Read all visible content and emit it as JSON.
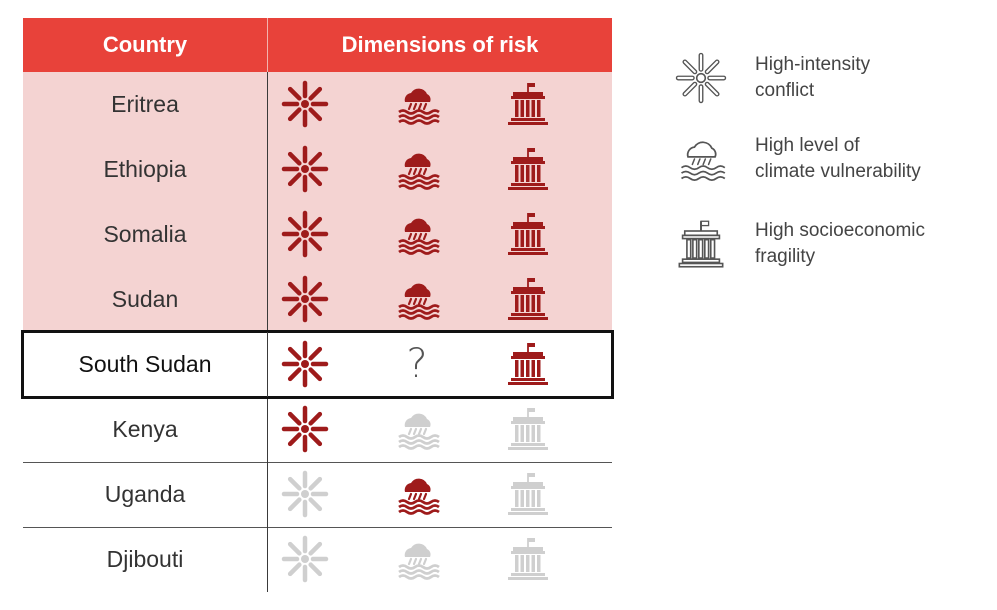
{
  "table": {
    "col_country": "Country",
    "col_dimensions": "Dimensions of risk"
  },
  "legend": {
    "conflict": [
      "High-intensity",
      "conflict"
    ],
    "climate": [
      "High level of",
      "climate vulnerability"
    ],
    "fragility": [
      "High socioeconomic",
      "fragility"
    ]
  },
  "colors": {
    "header_bg": "#e8423a",
    "shaded_row": "#f4d3d2",
    "active_icon": "#9e1b1b",
    "inactive_icon": "#cfcfcf",
    "legend_icon": "#555555"
  },
  "chart_data": {
    "type": "table",
    "columns": [
      "Country",
      "High-intensity conflict",
      "High level of climate vulnerability",
      "High socioeconomic fragility"
    ],
    "rows": [
      {
        "country": "Eritrea",
        "conflict": "yes",
        "climate": "yes",
        "fragility": "yes",
        "shaded": true
      },
      {
        "country": "Ethiopia",
        "conflict": "yes",
        "climate": "yes",
        "fragility": "yes",
        "shaded": true
      },
      {
        "country": "Somalia",
        "conflict": "yes",
        "climate": "yes",
        "fragility": "yes",
        "shaded": true
      },
      {
        "country": "Sudan",
        "conflict": "yes",
        "climate": "yes",
        "fragility": "yes",
        "shaded": true
      },
      {
        "country": "South Sudan",
        "conflict": "yes",
        "climate": "unknown",
        "fragility": "yes",
        "shaded": false,
        "highlighted": true
      },
      {
        "country": "Kenya",
        "conflict": "yes",
        "climate": "no",
        "fragility": "no",
        "shaded": false
      },
      {
        "country": "Uganda",
        "conflict": "no",
        "climate": "yes",
        "fragility": "no",
        "shaded": false
      },
      {
        "country": "Djibouti",
        "conflict": "no",
        "climate": "no",
        "fragility": "no",
        "shaded": false
      }
    ],
    "unknown_symbol": "?"
  }
}
